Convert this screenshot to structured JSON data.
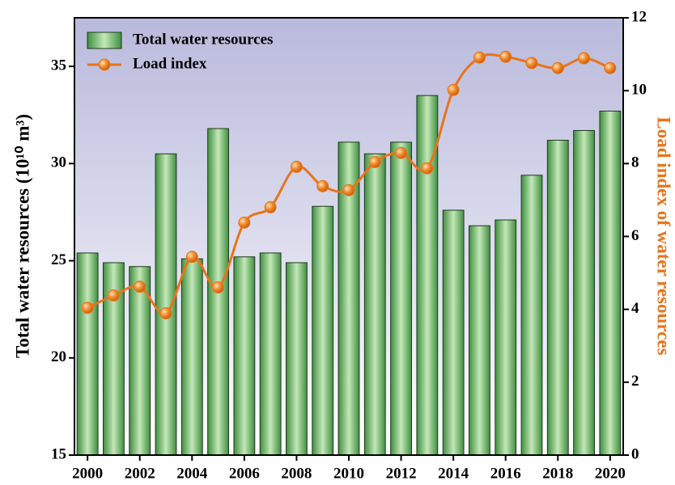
{
  "chart_data": {
    "type": "bar_line",
    "y_label": "Total water resources (10¹⁰ m³)",
    "y2_label": "Load index of water resources",
    "x": [
      2000,
      2001,
      2002,
      2003,
      2004,
      2005,
      2006,
      2007,
      2008,
      2009,
      2010,
      2011,
      2012,
      2013,
      2014,
      2015,
      2016,
      2017,
      2018,
      2019,
      2020
    ],
    "xlim": [
      1999.5,
      2020.5
    ],
    "xticks": [
      2000,
      2002,
      2004,
      2006,
      2008,
      2010,
      2012,
      2014,
      2016,
      2018,
      2020
    ],
    "ylim": [
      15,
      37.5
    ],
    "yticks": [
      15,
      20,
      25,
      30,
      35
    ],
    "y2lim": [
      0,
      12
    ],
    "y2ticks": [
      0,
      2,
      4,
      6,
      8,
      10,
      12
    ],
    "legend": "upper left",
    "series": [
      {
        "name": "Total water resources",
        "type": "bar",
        "color": "#5fae5f",
        "values": [
          25.4,
          24.9,
          24.7,
          30.5,
          25.1,
          31.8,
          25.2,
          25.4,
          24.9,
          27.8,
          31.1,
          30.5,
          31.1,
          33.5,
          27.6,
          26.8,
          27.1,
          29.4,
          31.2,
          31.7,
          32.7
        ]
      },
      {
        "name": "Load index",
        "type": "line",
        "axis": "y2",
        "color": "#e8741a",
        "values": [
          4.04,
          4.38,
          4.62,
          3.89,
          5.44,
          4.6,
          6.38,
          6.8,
          7.91,
          7.38,
          7.27,
          8.04,
          8.29,
          7.87,
          10.02,
          10.91,
          10.93,
          10.76,
          10.62,
          10.89,
          10.62
        ]
      }
    ]
  }
}
